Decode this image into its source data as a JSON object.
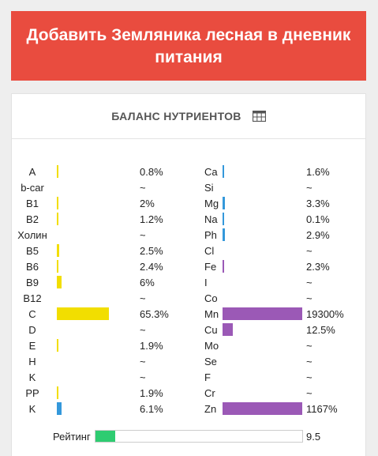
{
  "header": {
    "add_button_label": "Добавить Земляника лесная в дневник питания"
  },
  "card": {
    "title": "БАЛАНС НУТРИЕНТОВ",
    "table_icon": "table-icon"
  },
  "colors": {
    "vitamin": "#f2de00",
    "mineral": "#9b59b6",
    "blue": "#3498db",
    "rating": "#2ecc71"
  },
  "nutrients": [
    {
      "left": {
        "name": "A",
        "value": "0.8%",
        "level": 0.8,
        "color": "vitamin"
      },
      "right": {
        "name": "Ca",
        "value": "1.6%",
        "level": 1.6,
        "color": "blue"
      }
    },
    {
      "left": {
        "name": "b-car",
        "value": "~",
        "level": 0,
        "color": "vitamin"
      },
      "right": {
        "name": "Si",
        "value": "~",
        "level": 0,
        "color": "blue"
      }
    },
    {
      "left": {
        "name": "B1",
        "value": "2%",
        "level": 2,
        "color": "vitamin"
      },
      "right": {
        "name": "Mg",
        "value": "3.3%",
        "level": 3.3,
        "color": "blue"
      }
    },
    {
      "left": {
        "name": "B2",
        "value": "1.2%",
        "level": 1.2,
        "color": "vitamin"
      },
      "right": {
        "name": "Na",
        "value": "0.1%",
        "level": 0.1,
        "color": "blue"
      }
    },
    {
      "left": {
        "name": "Холин",
        "value": "~",
        "level": 0,
        "color": "vitamin"
      },
      "right": {
        "name": "Ph",
        "value": "2.9%",
        "level": 2.9,
        "color": "blue"
      }
    },
    {
      "left": {
        "name": "B5",
        "value": "2.5%",
        "level": 2.5,
        "color": "vitamin"
      },
      "right": {
        "name": "Cl",
        "value": "~",
        "level": 0,
        "color": "blue"
      }
    },
    {
      "left": {
        "name": "B6",
        "value": "2.4%",
        "level": 2.4,
        "color": "vitamin"
      },
      "right": {
        "name": "Fe",
        "value": "2.3%",
        "level": 2.3,
        "color": "mineral"
      }
    },
    {
      "left": {
        "name": "B9",
        "value": "6%",
        "level": 6,
        "color": "vitamin"
      },
      "right": {
        "name": "I",
        "value": "~",
        "level": 0,
        "color": "mineral"
      }
    },
    {
      "left": {
        "name": "B12",
        "value": "~",
        "level": 0,
        "color": "vitamin"
      },
      "right": {
        "name": "Co",
        "value": "~",
        "level": 0,
        "color": "mineral"
      }
    },
    {
      "left": {
        "name": "C",
        "value": "65.3%",
        "level": 65.3,
        "color": "vitamin"
      },
      "right": {
        "name": "Mn",
        "value": "19300%",
        "level": 19300,
        "color": "mineral"
      }
    },
    {
      "left": {
        "name": "D",
        "value": "~",
        "level": 0,
        "color": "vitamin"
      },
      "right": {
        "name": "Cu",
        "value": "12.5%",
        "level": 12.5,
        "color": "mineral"
      }
    },
    {
      "left": {
        "name": "E",
        "value": "1.9%",
        "level": 1.9,
        "color": "vitamin"
      },
      "right": {
        "name": "Mo",
        "value": "~",
        "level": 0,
        "color": "mineral"
      }
    },
    {
      "left": {
        "name": "H",
        "value": "~",
        "level": 0,
        "color": "vitamin"
      },
      "right": {
        "name": "Se",
        "value": "~",
        "level": 0,
        "color": "mineral"
      }
    },
    {
      "left": {
        "name": "K",
        "value": "~",
        "level": 0,
        "color": "vitamin"
      },
      "right": {
        "name": "F",
        "value": "~",
        "level": 0,
        "color": "mineral"
      }
    },
    {
      "left": {
        "name": "PP",
        "value": "1.9%",
        "level": 1.9,
        "color": "vitamin"
      },
      "right": {
        "name": "Cr",
        "value": "~",
        "level": 0,
        "color": "mineral"
      }
    },
    {
      "left": {
        "name": "K",
        "value": "6.1%",
        "level": 6.1,
        "color": "blue"
      },
      "right": {
        "name": "Zn",
        "value": "1167%",
        "level": 1167,
        "color": "mineral"
      }
    }
  ],
  "rating": {
    "label": "Рейтинг",
    "value": "9.5",
    "level": 9.5
  }
}
